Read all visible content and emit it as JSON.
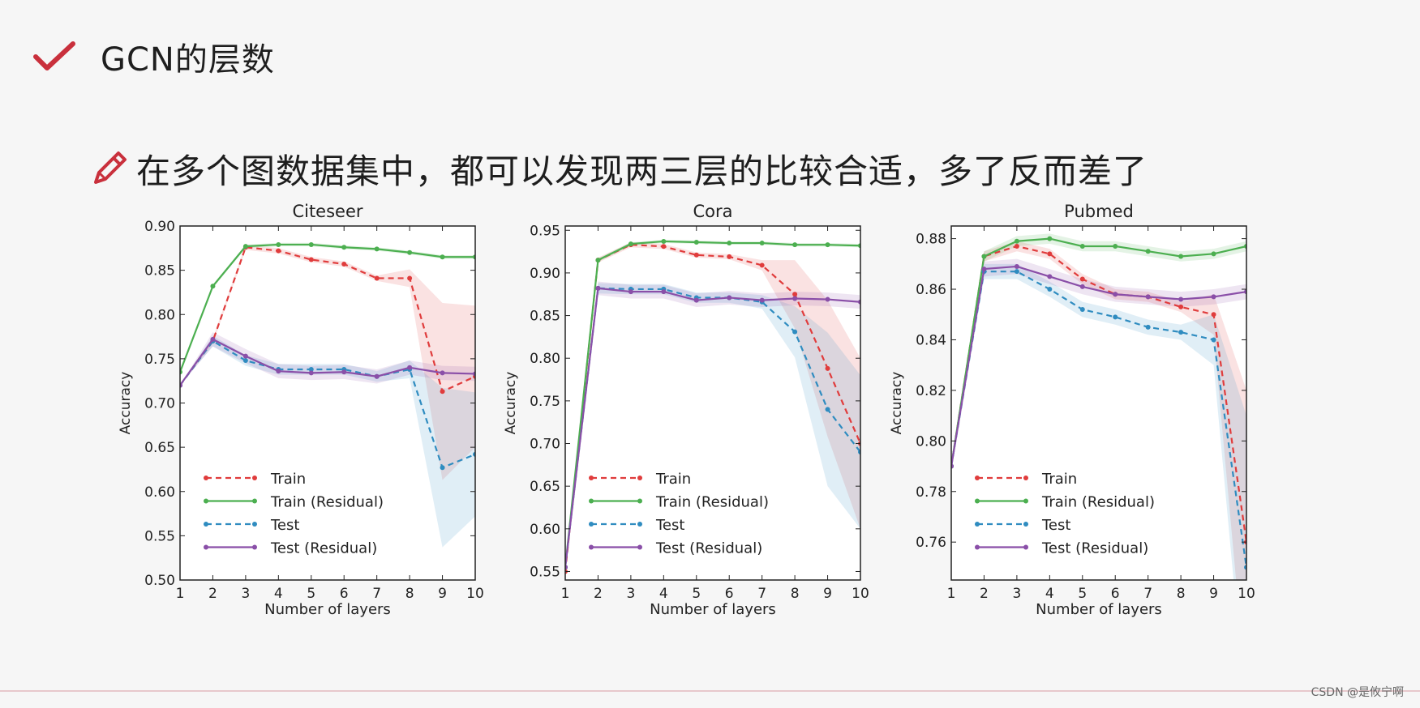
{
  "header": {
    "title": "GCN的层数"
  },
  "bullet": {
    "text": "在多个图数据集中，都可以发现两三层的比较合适，多了反而差了"
  },
  "watermark": "CSDN @是攸宁啊",
  "colors": {
    "train": "#e03c3c",
    "train_res": "#4caf50",
    "test": "#2f8cc0",
    "test_res": "#8a4fa8",
    "accent": "#c9303c"
  },
  "chart_data": [
    {
      "type": "line",
      "title": "Citeseer",
      "xlabel": "Number of layers",
      "ylabel": "Accuracy",
      "xlim": [
        1,
        10
      ],
      "ylim": [
        0.5,
        0.9
      ],
      "yticks": [
        0.5,
        0.55,
        0.6,
        0.65,
        0.7,
        0.75,
        0.8,
        0.85,
        0.9
      ],
      "ytick_labels": [
        "0.50",
        "0.55",
        "0.60",
        "0.65",
        "0.70",
        "0.75",
        "0.80",
        "0.85",
        "0.90"
      ],
      "x": [
        1,
        2,
        3,
        4,
        5,
        6,
        7,
        8,
        9,
        10
      ],
      "series": [
        {
          "name": "Train",
          "key": "train",
          "dashed": true,
          "values": [
            0.72,
            0.77,
            0.876,
            0.872,
            0.862,
            0.857,
            0.841,
            0.841,
            0.713,
            0.73
          ],
          "band": [
            0.0,
            0.003,
            0.003,
            0.003,
            0.003,
            0.003,
            0.003,
            0.01,
            0.1,
            0.08
          ]
        },
        {
          "name": "Train (Residual)",
          "key": "train_res",
          "dashed": false,
          "values": [
            0.735,
            0.832,
            0.877,
            0.879,
            0.879,
            0.876,
            0.874,
            0.87,
            0.865,
            0.865
          ],
          "band": [
            0.0,
            0.002,
            0.002,
            0.002,
            0.002,
            0.002,
            0.002,
            0.002,
            0.002,
            0.002
          ]
        },
        {
          "name": "Test",
          "key": "test",
          "dashed": true,
          "values": [
            0.72,
            0.77,
            0.748,
            0.738,
            0.738,
            0.738,
            0.73,
            0.738,
            0.627,
            0.642
          ],
          "band": [
            0.0,
            0.006,
            0.006,
            0.006,
            0.006,
            0.006,
            0.006,
            0.01,
            0.09,
            0.07
          ]
        },
        {
          "name": "Test (Residual)",
          "key": "test_res",
          "dashed": false,
          "values": [
            0.72,
            0.772,
            0.753,
            0.736,
            0.734,
            0.735,
            0.73,
            0.74,
            0.734,
            0.733
          ],
          "band": [
            0.0,
            0.008,
            0.008,
            0.008,
            0.008,
            0.008,
            0.008,
            0.008,
            0.008,
            0.008
          ]
        }
      ]
    },
    {
      "type": "line",
      "title": "Cora",
      "xlabel": "Number of layers",
      "ylabel": "Accuracy",
      "xlim": [
        1,
        10
      ],
      "ylim": [
        0.54,
        0.955
      ],
      "yticks": [
        0.55,
        0.6,
        0.65,
        0.7,
        0.75,
        0.8,
        0.85,
        0.9,
        0.95
      ],
      "ytick_labels": [
        "0.55",
        "0.60",
        "0.65",
        "0.70",
        "0.75",
        "0.80",
        "0.85",
        "0.90",
        "0.95"
      ],
      "x": [
        1,
        2,
        3,
        4,
        5,
        6,
        7,
        8,
        9,
        10
      ],
      "series": [
        {
          "name": "Train",
          "key": "train",
          "dashed": true,
          "values": [
            0.55,
            0.915,
            0.933,
            0.931,
            0.921,
            0.919,
            0.909,
            0.875,
            0.788,
            0.7
          ],
          "band": [
            0.0,
            0.003,
            0.003,
            0.003,
            0.003,
            0.003,
            0.006,
            0.04,
            0.08,
            0.1
          ]
        },
        {
          "name": "Train (Residual)",
          "key": "train_res",
          "dashed": false,
          "values": [
            0.555,
            0.915,
            0.934,
            0.937,
            0.936,
            0.935,
            0.935,
            0.933,
            0.933,
            0.932
          ],
          "band": [
            0.0,
            0.002,
            0.002,
            0.002,
            0.002,
            0.002,
            0.002,
            0.002,
            0.002,
            0.002
          ]
        },
        {
          "name": "Test",
          "key": "test",
          "dashed": true,
          "values": [
            0.555,
            0.882,
            0.881,
            0.881,
            0.871,
            0.871,
            0.866,
            0.831,
            0.74,
            0.69
          ],
          "band": [
            0.0,
            0.006,
            0.006,
            0.006,
            0.006,
            0.006,
            0.008,
            0.03,
            0.09,
            0.09
          ]
        },
        {
          "name": "Test (Residual)",
          "key": "test_res",
          "dashed": false,
          "values": [
            0.555,
            0.882,
            0.878,
            0.878,
            0.868,
            0.871,
            0.868,
            0.87,
            0.869,
            0.866
          ],
          "band": [
            0.0,
            0.008,
            0.008,
            0.008,
            0.008,
            0.008,
            0.008,
            0.008,
            0.008,
            0.008
          ]
        }
      ]
    },
    {
      "type": "line",
      "title": "Pubmed",
      "xlabel": "Number of layers",
      "ylabel": "Accuracy",
      "xlim": [
        1,
        10
      ],
      "ylim": [
        0.745,
        0.885
      ],
      "yticks": [
        0.76,
        0.78,
        0.8,
        0.82,
        0.84,
        0.86,
        0.88
      ],
      "ytick_labels": [
        "0.76",
        "0.78",
        "0.80",
        "0.82",
        "0.84",
        "0.86",
        "0.88"
      ],
      "x": [
        1,
        2,
        3,
        4,
        5,
        6,
        7,
        8,
        9,
        10
      ],
      "series": [
        {
          "name": "Train",
          "key": "train",
          "dashed": true,
          "values": [
            0.79,
            0.873,
            0.877,
            0.874,
            0.864,
            0.858,
            0.857,
            0.853,
            0.85,
            0.76
          ],
          "band": [
            0.0,
            0.002,
            0.002,
            0.002,
            0.002,
            0.002,
            0.002,
            0.002,
            0.008,
            0.06
          ]
        },
        {
          "name": "Train (Residual)",
          "key": "train_res",
          "dashed": false,
          "values": [
            0.79,
            0.873,
            0.879,
            0.88,
            0.877,
            0.877,
            0.875,
            0.873,
            0.874,
            0.877
          ],
          "band": [
            0.0,
            0.002,
            0.002,
            0.002,
            0.002,
            0.002,
            0.002,
            0.002,
            0.002,
            0.002
          ]
        },
        {
          "name": "Test",
          "key": "test",
          "dashed": true,
          "values": [
            0.79,
            0.867,
            0.867,
            0.86,
            0.852,
            0.849,
            0.845,
            0.843,
            0.84,
            0.75
          ],
          "band": [
            0.0,
            0.003,
            0.003,
            0.003,
            0.003,
            0.003,
            0.003,
            0.003,
            0.01,
            0.06
          ]
        },
        {
          "name": "Test (Residual)",
          "key": "test_res",
          "dashed": false,
          "values": [
            0.79,
            0.868,
            0.869,
            0.865,
            0.861,
            0.858,
            0.857,
            0.856,
            0.857,
            0.859
          ],
          "band": [
            0.0,
            0.003,
            0.003,
            0.003,
            0.003,
            0.003,
            0.003,
            0.003,
            0.003,
            0.003
          ]
        }
      ]
    }
  ]
}
